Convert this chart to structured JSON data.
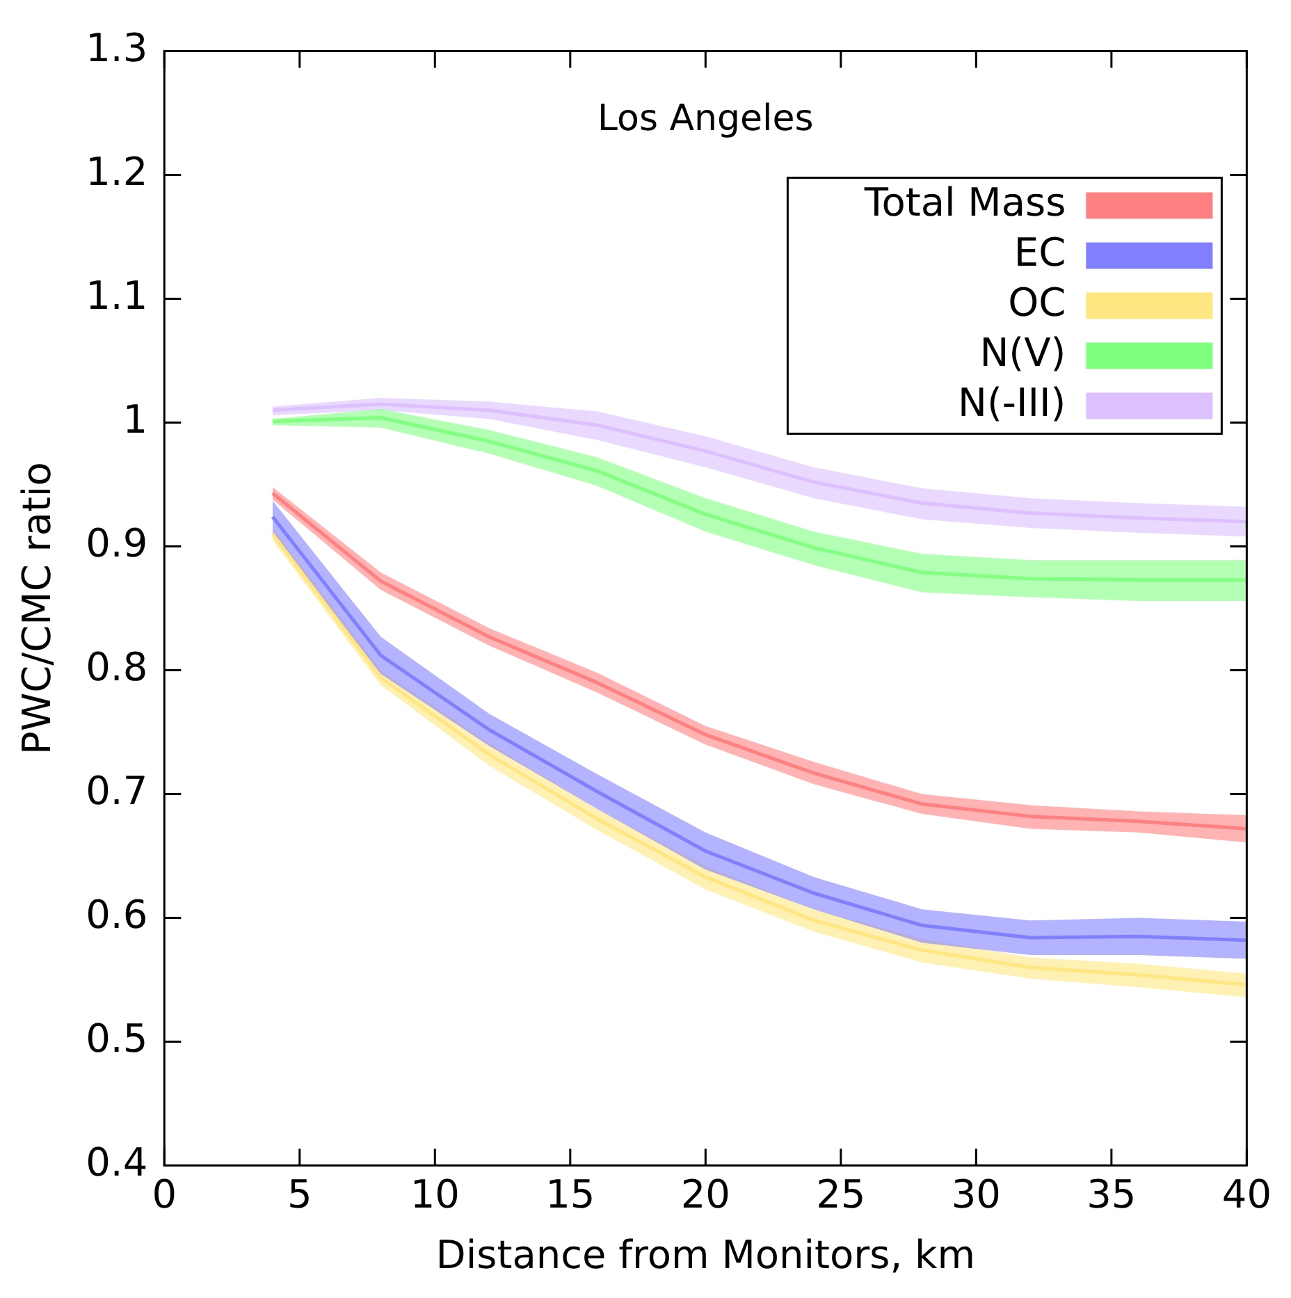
{
  "chart_data": {
    "type": "line",
    "title": "Los Angeles",
    "xlabel": "Distance from Monitors, km",
    "ylabel": "PWC/CMC ratio",
    "x": [
      4,
      8,
      12,
      16,
      20,
      24,
      28,
      32,
      36,
      40
    ],
    "xlim": [
      0,
      40
    ],
    "xticks": [
      0,
      5,
      10,
      15,
      20,
      25,
      30,
      35,
      40
    ],
    "ylim": [
      0.4,
      1.3
    ],
    "yticks": [
      0.4,
      0.5,
      0.6,
      0.7,
      0.8,
      0.9,
      1,
      1.1,
      1.2,
      1.3
    ],
    "grid": false,
    "legend": "top right",
    "series": [
      {
        "name": "Total Mass",
        "color": "#ff8080",
        "values": [
          0.943,
          0.872,
          0.827,
          0.79,
          0.748,
          0.717,
          0.692,
          0.682,
          0.678,
          0.672
        ],
        "lower": [
          0.938,
          0.865,
          0.82,
          0.782,
          0.74,
          0.708,
          0.684,
          0.672,
          0.669,
          0.661
        ],
        "upper": [
          0.948,
          0.879,
          0.834,
          0.798,
          0.755,
          0.726,
          0.7,
          0.691,
          0.686,
          0.683
        ]
      },
      {
        "name": "EC",
        "color": "#8080ff",
        "values": [
          0.924,
          0.812,
          0.752,
          0.702,
          0.654,
          0.62,
          0.594,
          0.584,
          0.585,
          0.582
        ],
        "lower": [
          0.91,
          0.797,
          0.739,
          0.688,
          0.639,
          0.607,
          0.58,
          0.57,
          0.57,
          0.567
        ],
        "upper": [
          0.937,
          0.827,
          0.765,
          0.716,
          0.669,
          0.633,
          0.607,
          0.598,
          0.6,
          0.597
        ]
      },
      {
        "name": "OC",
        "color": "#ffe680",
        "values": [
          0.91,
          0.794,
          0.732,
          0.68,
          0.633,
          0.598,
          0.574,
          0.56,
          0.554,
          0.546
        ],
        "lower": [
          0.905,
          0.788,
          0.723,
          0.671,
          0.623,
          0.589,
          0.564,
          0.551,
          0.544,
          0.536
        ],
        "upper": [
          0.915,
          0.8,
          0.741,
          0.688,
          0.642,
          0.607,
          0.583,
          0.568,
          0.563,
          0.555
        ]
      },
      {
        "name": "N(V)",
        "color": "#80ff80",
        "values": [
          1.001,
          1.004,
          0.985,
          0.961,
          0.926,
          0.899,
          0.879,
          0.874,
          0.873,
          0.873
        ],
        "lower": [
          0.998,
          0.996,
          0.975,
          0.949,
          0.912,
          0.885,
          0.863,
          0.859,
          0.856,
          0.856
        ],
        "upper": [
          1.003,
          1.011,
          0.994,
          0.972,
          0.939,
          0.912,
          0.894,
          0.889,
          0.889,
          0.889
        ]
      },
      {
        "name": "N(-III)",
        "color": "#dcc0ff",
        "values": [
          1.01,
          1.015,
          1.01,
          0.998,
          0.977,
          0.952,
          0.935,
          0.927,
          0.923,
          0.92
        ],
        "lower": [
          1.006,
          1.01,
          1.003,
          0.986,
          0.964,
          0.939,
          0.922,
          0.915,
          0.911,
          0.908
        ],
        "upper": [
          1.013,
          1.02,
          1.017,
          1.009,
          0.989,
          0.964,
          0.947,
          0.939,
          0.935,
          0.932
        ]
      }
    ]
  }
}
